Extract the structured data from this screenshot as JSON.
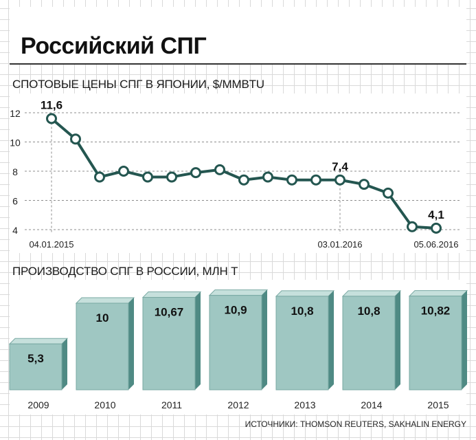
{
  "page": {
    "title": "Российский СПГ",
    "source": "ИСТОЧНИКИ: THOMSON REUTERS, SAKHALIN ENERGY"
  },
  "colors": {
    "line": "#245650",
    "bar_front": "#9fc7c2",
    "bar_side": "#4f8a84",
    "bar_top": "#c6e0dc"
  },
  "chart_data": [
    {
      "type": "line",
      "title": "СПОТОВЫЕ ЦЕНЫ СПГ В ЯПОНИИ, $/MMBTU",
      "ylim": [
        4,
        12
      ],
      "y_ticks": [
        4,
        6,
        8,
        10,
        12
      ],
      "x_tick_labels": [
        {
          "label": "04.01.2015",
          "index": 0
        },
        {
          "label": "03.01.2016",
          "index": 12
        },
        {
          "label": "05.06.2016",
          "index": 16
        }
      ],
      "values": [
        11.6,
        10.2,
        7.6,
        8.0,
        7.6,
        7.6,
        7.9,
        8.1,
        7.4,
        7.6,
        7.4,
        7.4,
        7.4,
        7.1,
        6.5,
        4.2,
        4.1
      ],
      "annotations": [
        {
          "index": 0,
          "text": "11,6"
        },
        {
          "index": 12,
          "text": "7,4"
        },
        {
          "index": 16,
          "text": "4,1"
        }
      ],
      "grid": true
    },
    {
      "type": "bar",
      "title": "ПРОИЗВОДСТВО СПГ В РОССИИ, МЛН Т",
      "categories": [
        "2009",
        "2010",
        "2011",
        "2012",
        "2013",
        "2014",
        "2015"
      ],
      "values": [
        5.3,
        10,
        10.67,
        10.9,
        10.8,
        10.8,
        10.82
      ],
      "labels": [
        "5,3",
        "10",
        "10,67",
        "10,9",
        "10,8",
        "10,8",
        "10,82"
      ]
    }
  ]
}
